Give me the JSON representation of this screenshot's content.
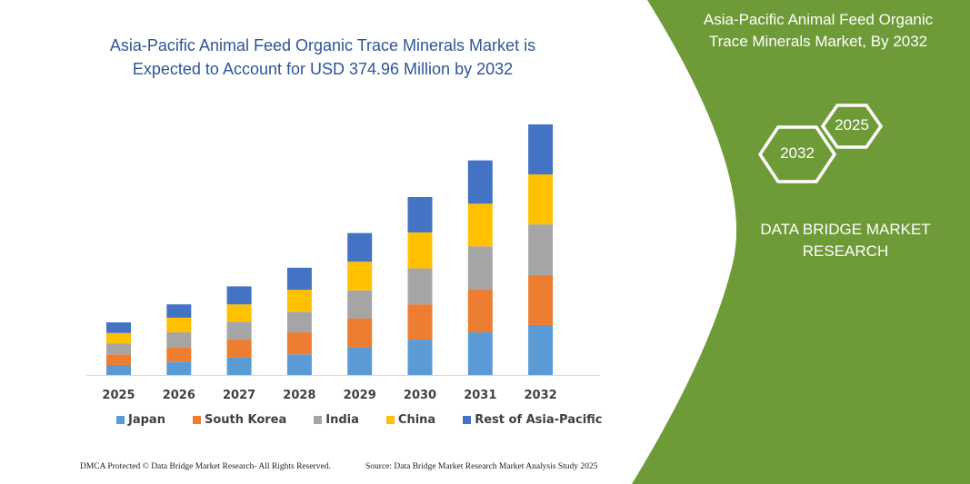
{
  "title": {
    "line1": "Asia-Pacific Animal Feed Organic Trace Minerals Market is",
    "line2": "Expected to Account for USD 374.96 Million by 2032"
  },
  "panel": {
    "title_line1": "Asia-Pacific Animal Feed Organic",
    "title_line2": "Trace Minerals Market, By 2032",
    "hex_left": "2032",
    "hex_right": "2025",
    "brand_line1": "DATA BRIDGE MARKET",
    "brand_line2": "RESEARCH",
    "color": "#6e9b38"
  },
  "footer": {
    "left": "DMCA Protected © Data Bridge Market Research-  All Rights Reserved.",
    "right": "Source:  Data Bridge Market Research  Market Analysis Study 2025"
  },
  "chart_data": {
    "type": "bar",
    "stacked": true,
    "title": "Asia-Pacific Animal Feed Organic Trace Minerals Market is Expected to Account for USD 374.96 Million by 2032",
    "xlabel": "",
    "ylabel": "",
    "y_axis_shown": false,
    "grid": false,
    "legend_position": "bottom",
    "ylim": [
      0,
      376
    ],
    "categories": [
      "2025",
      "2026",
      "2027",
      "2028",
      "2029",
      "2030",
      "2031",
      "2032"
    ],
    "series": [
      {
        "name": "Japan",
        "color": "#5b9bd5",
        "values": [
          15,
          20,
          26,
          31,
          42,
          53,
          64,
          75
        ]
      },
      {
        "name": "South Korea",
        "color": "#ed7d31",
        "values": [
          16,
          22,
          27,
          33,
          43,
          53,
          64,
          75
        ]
      },
      {
        "name": "India",
        "color": "#a5a5a5",
        "values": [
          16,
          22,
          27,
          31,
          42,
          54,
          65,
          76
        ]
      },
      {
        "name": "China",
        "color": "#ffc000",
        "values": [
          16,
          22,
          26,
          33,
          43,
          54,
          64,
          75
        ]
      },
      {
        "name": "Rest of Asia-Pacific",
        "color": "#4472c4",
        "values": [
          16,
          20,
          27,
          33,
          43,
          53,
          65,
          75
        ]
      }
    ]
  }
}
